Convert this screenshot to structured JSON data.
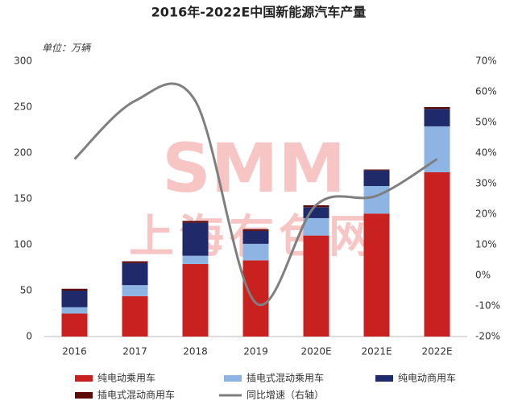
{
  "chart_data": {
    "type": "bar",
    "stacked": true,
    "title": "2016年-2022E中国新能源汽车产量",
    "unit_label": "单位：万辆",
    "watermark": [
      "SMM",
      "上海有色网"
    ],
    "categories": [
      "2016",
      "2017",
      "2018",
      "2019",
      "2020E",
      "2021E",
      "2022E"
    ],
    "series": [
      {
        "name": "纯电动乘用车",
        "color": "#c8211f",
        "values": [
          25,
          44,
          79,
          83,
          110,
          134,
          179
        ]
      },
      {
        "name": "插电式混动乘用车",
        "color": "#8db4e2",
        "values": [
          7,
          12,
          9,
          18,
          19,
          30,
          50
        ]
      },
      {
        "name": "纯电动商用车",
        "color": "#1f2a6b",
        "values": [
          18,
          24,
          36,
          14,
          12,
          17,
          19
        ]
      },
      {
        "name": "插电式混动商用车",
        "color": "#5c0a0a",
        "values": [
          2,
          2,
          2,
          2,
          2,
          1,
          2
        ]
      },
      {
        "name": "同比增速（右轴）",
        "color": "#7f7f7f",
        "type": "line",
        "axis": "y2",
        "values": [
          38,
          57,
          57,
          -9,
          23,
          26,
          38
        ]
      }
    ],
    "ylim": [
      0,
      300
    ],
    "yticks": [
      0,
      50,
      100,
      150,
      200,
      250,
      300
    ],
    "y2lim": [
      -20,
      70
    ],
    "y2ticks": [
      {
        "value": -20,
        "label": "-20%"
      },
      {
        "value": -10,
        "label": "-10%"
      },
      {
        "value": 0,
        "label": "0%"
      },
      {
        "value": 10,
        "label": "10%"
      },
      {
        "value": 20,
        "label": "20%"
      },
      {
        "value": 30,
        "label": "30%"
      },
      {
        "value": 40,
        "label": "40%"
      },
      {
        "value": 50,
        "label": "50%"
      },
      {
        "value": 60,
        "label": "60%"
      },
      {
        "value": 70,
        "label": "70%"
      }
    ],
    "grid": false,
    "legend": "bottom"
  }
}
